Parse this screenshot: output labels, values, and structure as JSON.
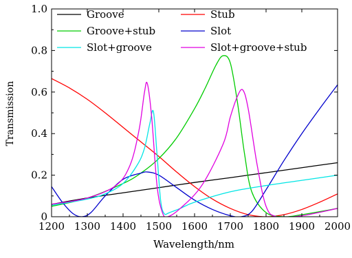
{
  "chart_data": {
    "type": "line",
    "xlabel": "Wavelength/nm",
    "ylabel": "Transmission",
    "xlim": [
      1200,
      2000
    ],
    "ylim": [
      0,
      1.0
    ],
    "x_ticks": [
      1200,
      1300,
      1400,
      1500,
      1600,
      1700,
      1800,
      1900,
      2000
    ],
    "y_ticks": [
      0,
      0.2,
      0.4,
      0.6,
      0.8,
      1.0
    ],
    "y_tick_labels": [
      "0",
      "0.2",
      "0.4",
      "0.6",
      "0.8",
      "1.0"
    ],
    "grid": false,
    "legend_position": "top",
    "series": [
      {
        "name": "Groove",
        "color": "#000000",
        "x": [
          1200,
          1300,
          1400,
          1500,
          1600,
          1700,
          1800,
          1900,
          2000
        ],
        "y": [
          0.06,
          0.09,
          0.115,
          0.14,
          0.165,
          0.188,
          0.212,
          0.236,
          0.26
        ]
      },
      {
        "name": "Stub",
        "color": "#ff0000",
        "x": [
          1200,
          1250,
          1300,
          1350,
          1400,
          1450,
          1500,
          1550,
          1600,
          1650,
          1700,
          1750,
          1800,
          1850,
          1900,
          1950,
          2000
        ],
        "y": [
          0.665,
          0.62,
          0.565,
          0.5,
          0.43,
          0.36,
          0.29,
          0.215,
          0.145,
          0.085,
          0.04,
          0.01,
          0.0,
          0.01,
          0.035,
          0.07,
          0.11
        ]
      },
      {
        "name": "Groove+stub",
        "color": "#00cc00",
        "x": [
          1200,
          1300,
          1400,
          1450,
          1500,
          1550,
          1600,
          1630,
          1660,
          1680,
          1700,
          1720,
          1740,
          1760,
          1800,
          1850,
          1900,
          2000
        ],
        "y": [
          0.05,
          0.09,
          0.16,
          0.21,
          0.28,
          0.38,
          0.52,
          0.62,
          0.73,
          0.775,
          0.74,
          0.55,
          0.3,
          0.12,
          0.02,
          0.0,
          0.01,
          0.04
        ]
      },
      {
        "name": "Slot",
        "color": "#0000cc",
        "x": [
          1200,
          1230,
          1260,
          1285,
          1310,
          1350,
          1400,
          1450,
          1470,
          1500,
          1550,
          1600,
          1650,
          1700,
          1730,
          1760,
          1800,
          1850,
          1900,
          1950,
          2000
        ],
        "y": [
          0.145,
          0.07,
          0.015,
          0.0,
          0.02,
          0.1,
          0.18,
          0.21,
          0.215,
          0.2,
          0.14,
          0.08,
          0.035,
          0.005,
          0.0,
          0.025,
          0.13,
          0.27,
          0.4,
          0.52,
          0.635
        ]
      },
      {
        "name": "Slot+groove",
        "color": "#00e5e5",
        "x": [
          1200,
          1300,
          1350,
          1400,
          1440,
          1460,
          1475,
          1485,
          1495,
          1505,
          1515,
          1530,
          1560,
          1600,
          1700,
          1800,
          1900,
          2000
        ],
        "y": [
          0.055,
          0.085,
          0.11,
          0.16,
          0.25,
          0.33,
          0.45,
          0.505,
          0.3,
          0.08,
          0.015,
          0.02,
          0.04,
          0.07,
          0.12,
          0.15,
          0.175,
          0.2
        ]
      },
      {
        "name": "Slot+groove+stub",
        "color": "#e000e0",
        "x": [
          1200,
          1300,
          1380,
          1420,
          1445,
          1460,
          1468,
          1480,
          1495,
          1510,
          1525,
          1560,
          1620,
          1680,
          1700,
          1720,
          1735,
          1750,
          1775,
          1800,
          1830,
          1900,
          2000
        ],
        "y": [
          0.06,
          0.09,
          0.15,
          0.25,
          0.42,
          0.6,
          0.64,
          0.48,
          0.15,
          0.02,
          0.0,
          0.04,
          0.15,
          0.35,
          0.48,
          0.58,
          0.61,
          0.52,
          0.25,
          0.05,
          0.0,
          0.005,
          0.04
        ]
      }
    ]
  }
}
